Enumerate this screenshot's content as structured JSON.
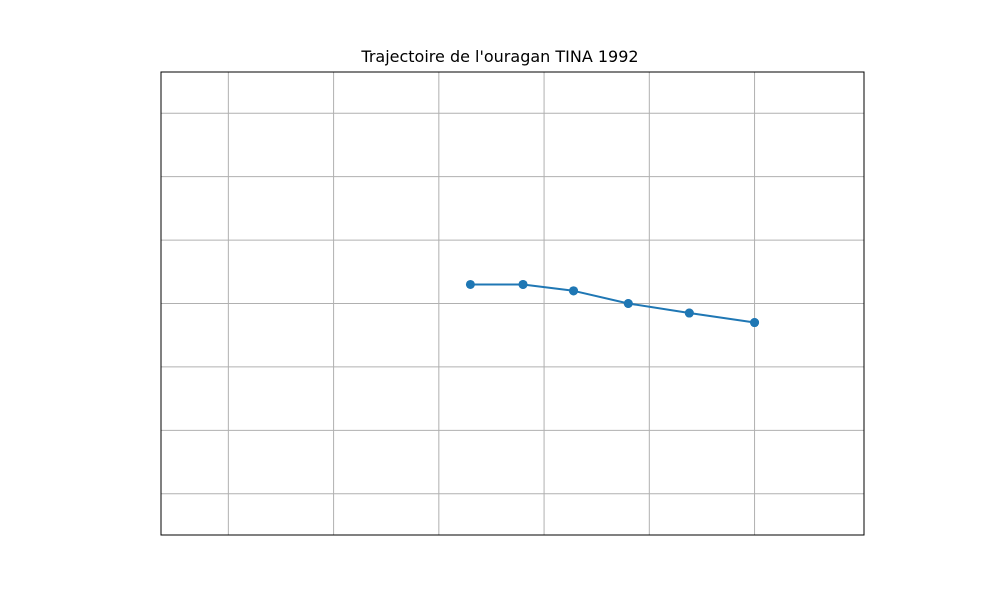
{
  "chart_data": {
    "type": "line",
    "title": "Trajectoire de l'ouragan TINA 1992",
    "xlabel": "",
    "ylabel": "",
    "grid": true,
    "xlim": [
      -135.7,
      -102.3
    ],
    "ylim": [
      14.7,
      29.3
    ],
    "x_gridlines": [
      -132.5,
      -127.5,
      -122.5,
      -117.5,
      -112.5,
      -107.5
    ],
    "y_gridlines": [
      16,
      18,
      20,
      22,
      24,
      26,
      28
    ],
    "series": [
      {
        "name": "",
        "color": "#1f77b4",
        "x": [
          -107.5,
          -110.6,
          -113.5,
          -116.1,
          -118.5,
          -121.0,
          -118.5,
          -116.1,
          -113.5,
          -110.6,
          -107.5
        ],
        "y": [
          21.4,
          21.7,
          22.0,
          22.4,
          22.6,
          22.6,
          22.6,
          22.4,
          22.0,
          21.7,
          21.4
        ]
      }
    ]
  }
}
